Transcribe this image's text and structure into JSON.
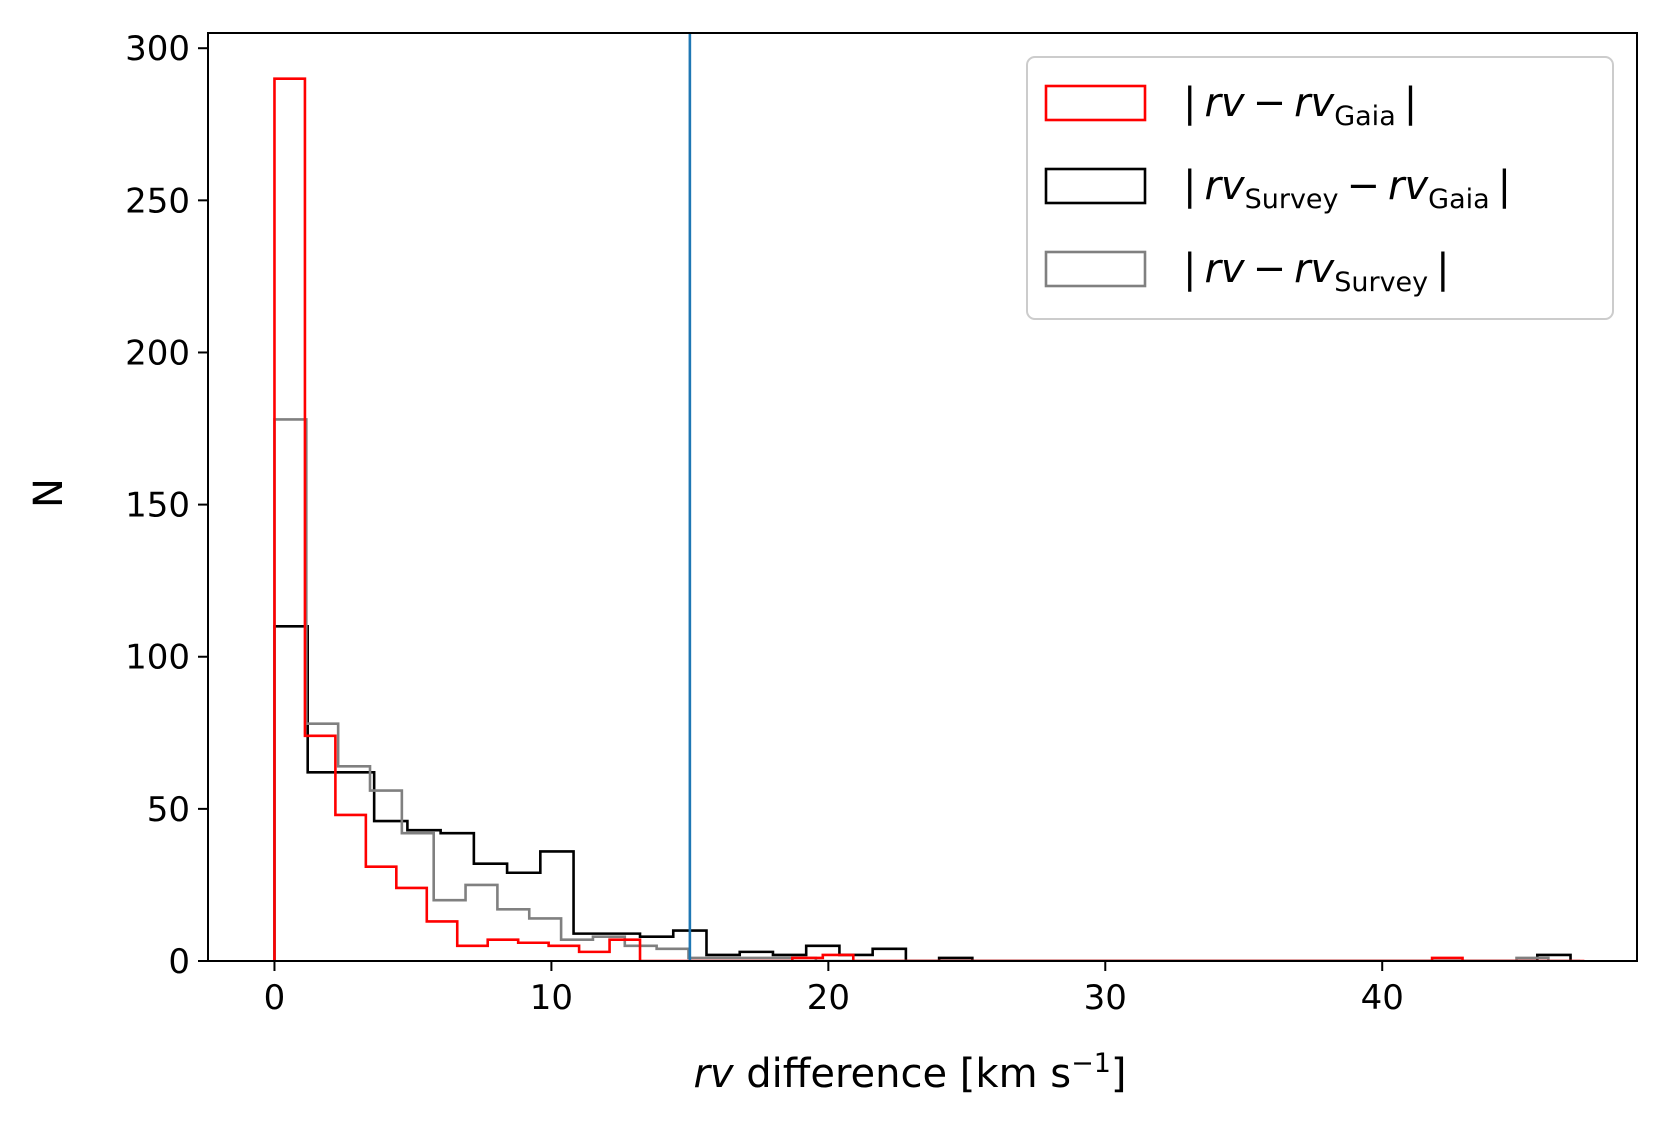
{
  "chart_data": {
    "type": "histogram",
    "xlabel": {
      "italic": "rv",
      "rest": " difference [km s",
      "sup": "−1",
      "end": "]"
    },
    "ylabel": "N",
    "xlim": [
      -2.4,
      49.2
    ],
    "ylim": [
      0,
      305
    ],
    "xticks": [
      0,
      10,
      20,
      30,
      40
    ],
    "xtick_labels": [
      "0",
      "10",
      "20",
      "30",
      "40"
    ],
    "yticks": [
      0,
      50,
      100,
      150,
      200,
      250,
      300
    ],
    "ytick_labels": [
      "0",
      "50",
      "100",
      "150",
      "200",
      "250",
      "300"
    ],
    "grid": false,
    "legend_position": "top-right",
    "vline": {
      "x": 15,
      "color": "#1f77b4"
    },
    "series": [
      {
        "legend": {
          "a": "rv",
          "a_sub": "",
          "b": "rv",
          "b_sub": "Gaia"
        },
        "color": "#ff0000",
        "bin_start": 0,
        "bin_width": 1.1,
        "counts": [
          290,
          74,
          48,
          31,
          24,
          13,
          5,
          7,
          6,
          5,
          3,
          7,
          0,
          0,
          0,
          0,
          0,
          1,
          2,
          0,
          0,
          0,
          0,
          0,
          0,
          0,
          0,
          0,
          0,
          0,
          0,
          0,
          0,
          0,
          0,
          0,
          0,
          0,
          1,
          0,
          0,
          0,
          0
        ]
      },
      {
        "legend": {
          "a": "rv",
          "a_sub": "Survey",
          "b": "rv",
          "b_sub": "Gaia"
        },
        "color": "#000000",
        "bin_start": 0,
        "bin_width": 1.2,
        "counts": [
          110,
          62,
          62,
          46,
          43,
          42,
          32,
          29,
          36,
          9,
          9,
          8,
          10,
          2,
          3,
          2,
          5,
          2,
          4,
          0,
          1,
          0,
          0,
          0,
          0,
          0,
          0,
          0,
          0,
          0,
          0,
          0,
          0,
          0,
          0,
          0,
          0,
          0,
          2
        ]
      },
      {
        "legend": {
          "a": "rv",
          "a_sub": "",
          "b": "rv",
          "b_sub": "Survey"
        },
        "color": "#808080",
        "bin_start": 0,
        "bin_width": 1.15,
        "counts": [
          178,
          78,
          64,
          56,
          42,
          20,
          25,
          17,
          14,
          7,
          8,
          5,
          4,
          1,
          1,
          1,
          1,
          0,
          0,
          0,
          0,
          0,
          0,
          0,
          0,
          0,
          0,
          0,
          0,
          0,
          0,
          0,
          0,
          0,
          0,
          0,
          0,
          0,
          0,
          1,
          0
        ]
      }
    ]
  }
}
